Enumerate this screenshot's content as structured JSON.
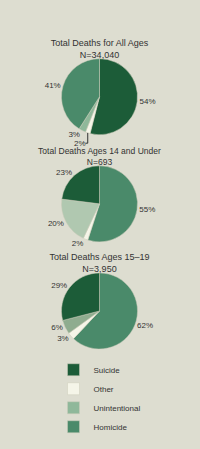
{
  "chart_data": [
    {
      "type": "pie",
      "title": "Total Deaths for All Ages\nN=34,040",
      "categories": [
        "Suicide",
        "Other",
        "Unintentional",
        "Homicide"
      ],
      "values": [
        54,
        2,
        3,
        41
      ],
      "value_labels": [
        "54%",
        "2%",
        "3%",
        "41%"
      ],
      "colors": [
        "#1c5c38",
        "#f5f5e8",
        "#8fb89a",
        "#4a8a6a"
      ],
      "data_labels": true
    },
    {
      "type": "pie",
      "title": "Total Deaths Ages 14 and Under\nN=693",
      "categories": [
        "Homicide",
        "Other",
        "Unintentional",
        "Suicide"
      ],
      "values": [
        55,
        2,
        20,
        23
      ],
      "value_labels": [
        "55%",
        "2%",
        "20%",
        "23%"
      ],
      "colors": [
        "#4a8a6a",
        "#f5f5e8",
        "#b0c8b0",
        "#1c5c38"
      ],
      "data_labels": true
    },
    {
      "type": "pie",
      "title": "Total Deaths Ages 15–19\nN=3,950",
      "categories": [
        "Homicide",
        "Other",
        "Unintentional",
        "Suicide"
      ],
      "values": [
        62,
        3,
        6,
        29
      ],
      "value_labels": [
        "62%",
        "3%",
        "6%",
        "29%"
      ],
      "colors": [
        "#4a8a6a",
        "#f5f5e8",
        "#8fac8f",
        "#1c5c38"
      ],
      "data_labels": true
    }
  ]
}
